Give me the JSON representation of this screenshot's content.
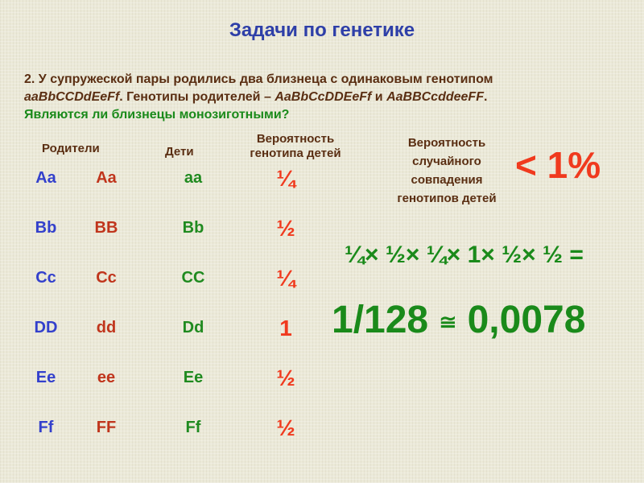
{
  "title": "Задачи по генетике",
  "task": {
    "line1": "2. У супружеской пары родились два близнеца  с одинаковым генотипом",
    "child_genotype": "aaBbCCDdEeFf",
    "line2_mid": ". Генотипы родителей – ",
    "parent1": "AaBbCcDDEeFf",
    "and": " и ",
    "parent2": "AaBBCcddeeFF",
    "end": ".",
    "question": "Являются ли близнецы монозиготными?"
  },
  "headers": {
    "parents": "Родители",
    "children": "Дети",
    "prob_line1": "Вероятность",
    "prob_line2": "генотипа детей",
    "match": [
      "Вероятность",
      "случайного",
      "совпадения",
      "генотипов детей"
    ]
  },
  "rows": [
    {
      "p1": "Aa",
      "p2": "Aa",
      "child": "aa",
      "prob": "¼"
    },
    {
      "p1": "Bb",
      "p2": "BB",
      "child": "Bb",
      "prob": "½"
    },
    {
      "p1": "Cc",
      "p2": "Cc",
      "child": "CC",
      "prob": "¼"
    },
    {
      "p1": "DD",
      "p2": "dd",
      "child": "Dd",
      "prob": "1"
    },
    {
      "p1": "Ee",
      "p2": "ee",
      "child": "Ee",
      "prob": "½"
    },
    {
      "p1": "Ff",
      "p2": "FF",
      "child": "Ff",
      "prob": "½"
    }
  ],
  "result": {
    "less": "< 1%",
    "product": "¼× ½× ¼× 1× ½× ½  =",
    "fraction": "1/128",
    "approx": "≅",
    "decimal": "0,0078"
  },
  "colors": {
    "title": "#2e3fa8",
    "text": "#5a2e12",
    "green": "#1a8a1a",
    "red": "#f03a1e",
    "parent1": "#3340cc",
    "parent2": "#c0351c"
  }
}
